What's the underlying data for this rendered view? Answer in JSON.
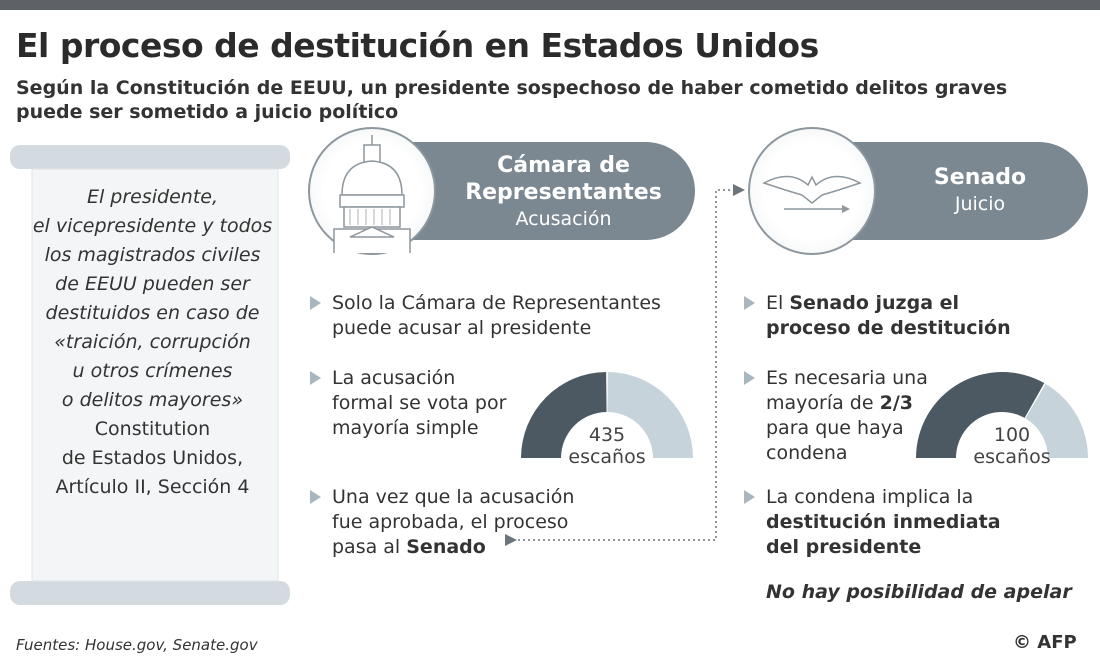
{
  "header": {
    "title": "El proceso de destitución en Estados Unidos",
    "subtitle": "Según la Constitución de EEUU, un presidente sospechoso de haber cometido delitos graves puede ser sometido a juicio político"
  },
  "scroll": {
    "quote_lines": [
      "El presidente,",
      "el vicepresidente y todos",
      "los magistrados civiles",
      "de EEUU pueden ser",
      "destituidos en caso de",
      "«traición, corrupción",
      "u otros crímenes",
      "o delitos mayores»"
    ],
    "source_lines": [
      "Constitution",
      "de Estados Unidos,",
      "Artículo II, Sección 4"
    ]
  },
  "house": {
    "title_1": "Cámara de",
    "title_2": "Representantes",
    "subtitle": "Acusación",
    "icon": "capitol-icon",
    "bullets": [
      {
        "parts": [
          {
            "t": "Solo la Cámara de Representantes puede acusar al presidente",
            "b": false
          }
        ]
      },
      {
        "parts": [
          {
            "t": "La acusación formal se vota por mayoría simple",
            "b": false
          }
        ]
      },
      {
        "parts": [
          {
            "t": "Una vez que la acusación fue aprobada, el proceso pasa al ",
            "b": false
          },
          {
            "t": "Senado",
            "b": true
          }
        ]
      }
    ],
    "gauge": {
      "seats": "435",
      "unit": "escaños",
      "majority_fraction": 0.5
    }
  },
  "senate": {
    "title": "Senado",
    "subtitle": "Juicio",
    "icon": "eagle-seal-icon",
    "bullets": [
      {
        "parts": [
          {
            "t": "El ",
            "b": false
          },
          {
            "t": "Senado juzga el proceso de destitución",
            "b": true
          }
        ]
      },
      {
        "parts": [
          {
            "t": "Es necesaria una mayoría de ",
            "b": false
          },
          {
            "t": "2/3",
            "b": true
          },
          {
            "t": " para que haya condena",
            "b": false
          }
        ]
      },
      {
        "parts": [
          {
            "t": "La condena implica la ",
            "b": false
          },
          {
            "t": "destitución inmediata del presidente",
            "b": true
          }
        ]
      }
    ],
    "note": "No hay posibilidad de apelar",
    "gauge": {
      "seats": "100",
      "unit": "escaños",
      "majority_fraction": 0.6667
    }
  },
  "footer": {
    "sources": "Fuentes: House.gov, Senate.gov",
    "credit": "© AFP"
  },
  "colors": {
    "dark": "#4c5962",
    "light": "#c6d3db",
    "pill": "#7b8891",
    "bullet": "#a8b6bf"
  }
}
